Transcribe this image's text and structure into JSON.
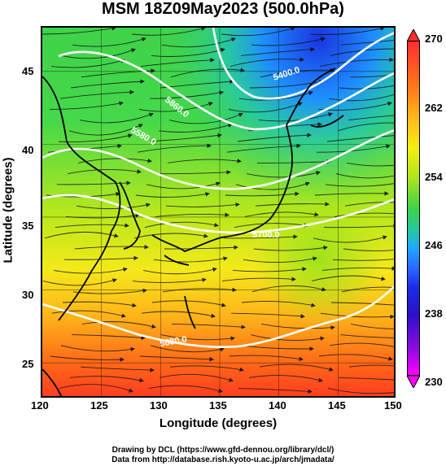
{
  "title": "MSM 18Z09May2023 (500.0hPa)",
  "axes": {
    "xlabel": "Longitude (degrees)",
    "ylabel": "Latitude  (degrees)",
    "xticks": [
      "120",
      "125",
      "130",
      "135",
      "140",
      "145",
      "150"
    ],
    "yticks": [
      "45",
      "40",
      "35",
      "30",
      "25"
    ],
    "xrange": [
      120,
      150
    ],
    "yrange": [
      22.5,
      48
    ]
  },
  "colorbar": {
    "ticks": [
      "270",
      "262",
      "254",
      "246",
      "238",
      "230"
    ],
    "range": [
      230,
      270
    ],
    "colors": [
      "#ff2f2f",
      "#ffbf1a",
      "#b7e61a",
      "#3fd24a",
      "#1ea8ff",
      "#1b2be6",
      "#ff00ff"
    ]
  },
  "contours": {
    "labels": [
      "5400.0",
      "5580.0",
      "5700.0",
      "5880.0",
      "5860.0"
    ]
  },
  "credits": {
    "line1": "Drawing by DCL (https://www.gfd-dennou.org/library/dcl/)",
    "line2": "Data from http://database.rish.kyoto-u.ac.jp/arch/jmadata/"
  }
}
